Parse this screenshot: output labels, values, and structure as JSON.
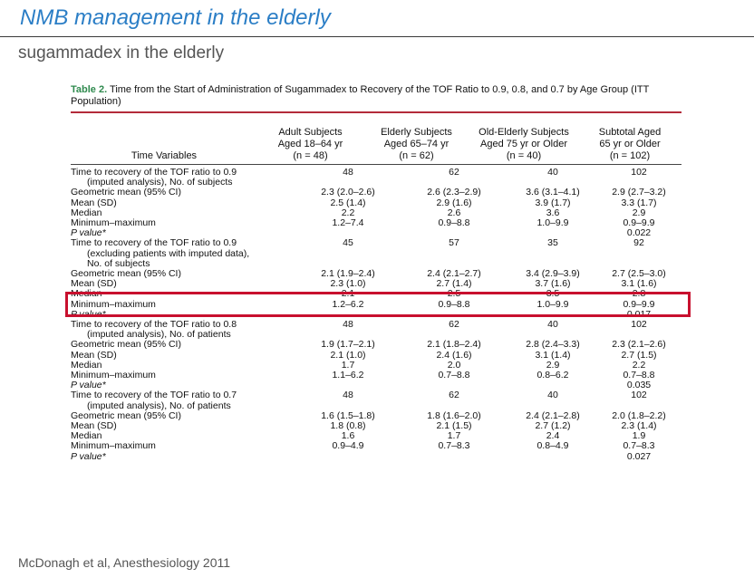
{
  "slide": {
    "title": "NMB management in the elderly",
    "subtitle": "sugammadex in the elderly",
    "citation": "McDonagh et al, Anesthesiology 2011"
  },
  "table": {
    "label": "Table 2.",
    "caption": "Time from the Start of Administration of Sugammadex to Recovery of the TOF Ratio to 0.9, 0.8, and 0.7 by Age Group (ITT Population)",
    "headers": [
      {
        "line1": "",
        "line2": "",
        "line3": "Time Variables"
      },
      {
        "line1": "Adult Subjects",
        "line2": "Aged 18–64 yr",
        "line3": "(n = 48)"
      },
      {
        "line1": "Elderly Subjects",
        "line2": "Aged 65–74 yr",
        "line3": "(n = 62)"
      },
      {
        "line1": "Old-Elderly Subjects",
        "line2": "Aged 75 yr or Older",
        "line3": "(n = 40)"
      },
      {
        "line1": "Subtotal Aged",
        "line2": "65 yr or Older",
        "line3": "(n = 102)"
      }
    ],
    "rows": [
      {
        "label": "Time to recovery of the TOF ratio to 0.9",
        "v": [
          "48",
          "62",
          "40",
          "102"
        ]
      },
      {
        "label": "(imputed analysis), No. of subjects",
        "v": [
          "",
          "",
          "",
          ""
        ],
        "cont": true
      },
      {
        "label": "Geometric mean (95% CI)",
        "v": [
          "2.3 (2.0–2.6)",
          "2.6 (2.3–2.9)",
          "3.6 (3.1–4.1)",
          "2.9 (2.7–3.2)"
        ],
        "sub": true
      },
      {
        "label": "Mean (SD)",
        "v": [
          "2.5 (1.4)",
          "2.9 (1.6)",
          "3.9 (1.7)",
          "3.3 (1.7)"
        ],
        "sub": true
      },
      {
        "label": "Median",
        "v": [
          "2.2",
          "2.6",
          "3.6",
          "2.9"
        ],
        "sub": true
      },
      {
        "label": "Minimum–maximum",
        "v": [
          "1.2–7.4",
          "0.9–8.8",
          "1.0–9.9",
          "0.9–9.9"
        ],
        "sub": true
      },
      {
        "label": "P value*",
        "v": [
          "",
          "",
          "",
          "0.022"
        ],
        "sub": true,
        "italic": true
      },
      {
        "label": "Time to recovery of the TOF ratio to 0.9",
        "v": [
          "45",
          "57",
          "35",
          "92"
        ]
      },
      {
        "label": "(excluding patients with imputed data),",
        "v": [
          "",
          "",
          "",
          ""
        ],
        "cont": true
      },
      {
        "label": "No. of subjects",
        "v": [
          "",
          "",
          "",
          ""
        ],
        "cont": true
      },
      {
        "label": "Geometric mean (95% CI)",
        "v": [
          "2.1 (1.9–2.4)",
          "2.4 (2.1–2.7)",
          "3.4 (2.9–3.9)",
          "2.7 (2.5–3.0)"
        ],
        "sub": true
      },
      {
        "label": "Mean (SD)",
        "v": [
          "2.3 (1.0)",
          "2.7 (1.4)",
          "3.7 (1.6)",
          "3.1 (1.6)"
        ],
        "sub": true
      },
      {
        "label": "Median",
        "v": [
          "2.1",
          "2.5",
          "3.5",
          "2.8"
        ],
        "sub": true
      },
      {
        "label": "Minimum–maximum",
        "v": [
          "1.2–6.2",
          "0.9–8.8",
          "1.0–9.9",
          "0.9–9.9"
        ],
        "sub": true
      },
      {
        "label": "P value*",
        "v": [
          "",
          "",
          "",
          "0.017"
        ],
        "sub": true,
        "italic": true
      },
      {
        "label": "Time to recovery of the TOF ratio to 0.8",
        "v": [
          "48",
          "62",
          "40",
          "102"
        ]
      },
      {
        "label": "(imputed analysis), No. of patients",
        "v": [
          "",
          "",
          "",
          ""
        ],
        "cont": true
      },
      {
        "label": "Geometric mean (95% CI)",
        "v": [
          "1.9 (1.7–2.1)",
          "2.1 (1.8–2.4)",
          "2.8 (2.4–3.3)",
          "2.3 (2.1–2.6)"
        ],
        "sub": true
      },
      {
        "label": "Mean (SD)",
        "v": [
          "2.1 (1.0)",
          "2.4 (1.6)",
          "3.1 (1.4)",
          "2.7 (1.5)"
        ],
        "sub": true
      },
      {
        "label": "Median",
        "v": [
          "1.7",
          "2.0",
          "2.9",
          "2.2"
        ],
        "sub": true
      },
      {
        "label": "Minimum–maximum",
        "v": [
          "1.1–6.2",
          "0.7–8.8",
          "0.8–6.2",
          "0.7–8.8"
        ],
        "sub": true
      },
      {
        "label": "P value*",
        "v": [
          "",
          "",
          "",
          "0.035"
        ],
        "sub": true,
        "italic": true
      },
      {
        "label": "Time to recovery of the TOF ratio to 0.7",
        "v": [
          "48",
          "62",
          "40",
          "102"
        ]
      },
      {
        "label": "(imputed analysis), No. of patients",
        "v": [
          "",
          "",
          "",
          ""
        ],
        "cont": true
      },
      {
        "label": "Geometric mean (95% CI)",
        "v": [
          "1.6 (1.5–1.8)",
          "1.8 (1.6–2.0)",
          "2.4 (2.1–2.8)",
          "2.0 (1.8–2.2)"
        ],
        "sub": true
      },
      {
        "label": "Mean (SD)",
        "v": [
          "1.8 (0.8)",
          "2.1 (1.5)",
          "2.7 (1.2)",
          "2.3 (1.4)"
        ],
        "sub": true
      },
      {
        "label": "Median",
        "v": [
          "1.6",
          "1.7",
          "2.4",
          "1.9"
        ],
        "sub": true
      },
      {
        "label": "Minimum–maximum",
        "v": [
          "0.9–4.9",
          "0.7–8.3",
          "0.8–4.9",
          "0.7–8.3"
        ],
        "sub": true
      },
      {
        "label": "P value*",
        "v": [
          "",
          "",
          "",
          "0.027"
        ],
        "sub": true,
        "italic": true
      }
    ]
  },
  "colors": {
    "title": "#2b7ec6",
    "table_label": "#2f8a4e",
    "rule": "#b32b3a",
    "highlight": "#c8102e"
  }
}
